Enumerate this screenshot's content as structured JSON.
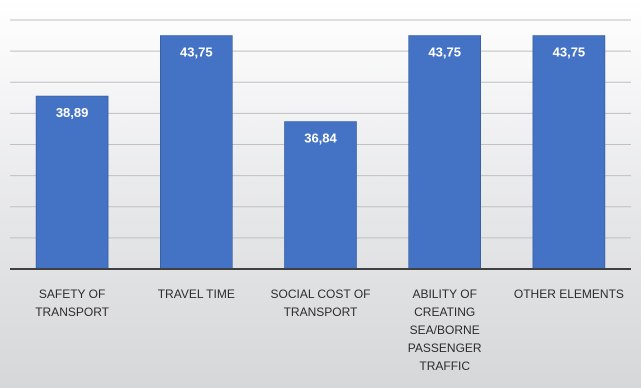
{
  "chart_data": {
    "type": "bar",
    "title": "",
    "xlabel": "",
    "ylabel": "",
    "categories": [
      [
        "SAFETY OF",
        "TRANSPORT"
      ],
      [
        "TRAVEL TIME"
      ],
      [
        "SOCIAL COST OF",
        "TRANSPORT"
      ],
      [
        "ABILITY OF",
        "CREATING",
        "SEA/BORNE",
        "PASSENGER",
        "TRAFFIC"
      ],
      [
        "OTHER ELEMENTS"
      ]
    ],
    "values": [
      38.89,
      43.75,
      36.84,
      43.75,
      43.75
    ],
    "value_labels": [
      "38,89",
      "43,75",
      "36,84",
      "43,75",
      "43,75"
    ],
    "ylim": [
      25,
      45
    ],
    "gridline_step": 2.5,
    "grid": true,
    "legend": "none",
    "colors": {
      "bar": "#4472c4",
      "bar_edge": "#2f5597",
      "grid": "#c0c0c0",
      "axis": "#404040"
    }
  }
}
